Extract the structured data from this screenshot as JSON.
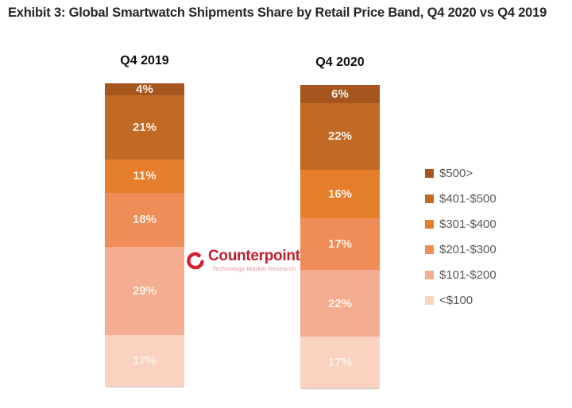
{
  "title": "Exhibit 3: Global Smartwatch Shipments Share by Retail Price Band, Q4 2020 vs Q4 2019",
  "chart_data": {
    "type": "bar",
    "variant": "100-percent-stacked-column",
    "categories": [
      "Q4 2019",
      "Q4 2020"
    ],
    "series": [
      {
        "name": "$500>",
        "color": "#a5551d",
        "values": [
          4,
          6
        ]
      },
      {
        "name": "$401-$500",
        "color": "#c16a25",
        "values": [
          21,
          22
        ]
      },
      {
        "name": "$301-$400",
        "color": "#e67f2b",
        "values": [
          11,
          16
        ]
      },
      {
        "name": "$201-$300",
        "color": "#ef8d58",
        "values": [
          18,
          17
        ]
      },
      {
        "name": "$101-$200",
        "color": "#f5ad92",
        "values": [
          29,
          22
        ]
      },
      {
        "name": "<$100",
        "color": "#f9d2c0",
        "values": [
          17,
          17
        ]
      }
    ],
    "value_suffix": "%",
    "stack_order": "top-to-bottom",
    "legend_position": "right",
    "data_label_color": "#fbf1e4",
    "axis": "none",
    "grid": false
  },
  "logo": {
    "name": "Counterpoint",
    "tagline": "Technology Market Research",
    "name_color": "#c01f2e",
    "tagline_color": "#e18f93",
    "icon_color": "#d6202f"
  }
}
